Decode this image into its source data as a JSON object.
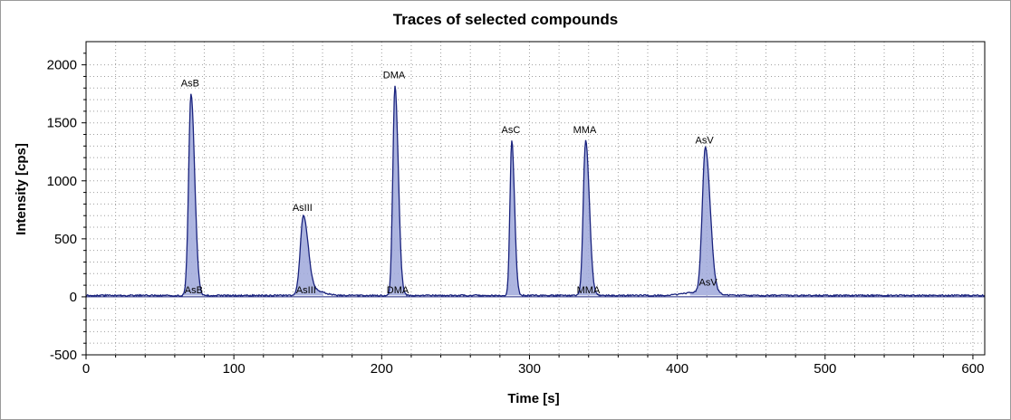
{
  "chart_data": {
    "type": "line",
    "title": "Traces of selected compounds",
    "xlabel": "Time [s]",
    "ylabel": "Intensity [cps]",
    "xlim": [
      0,
      608
    ],
    "ylim": [
      -500,
      2200
    ],
    "x_ticks": [
      0,
      100,
      200,
      300,
      400,
      500,
      600
    ],
    "y_ticks": [
      -500,
      0,
      500,
      1000,
      1500,
      2000
    ],
    "grid": true,
    "line_color": "#1a237e",
    "fill_color": "#9fa8da",
    "baseline": 12,
    "peaks": [
      {
        "name": "AsB",
        "time": 71,
        "height": 1750,
        "width": 2.0
      },
      {
        "name": "AsIII",
        "time": 147,
        "height": 680,
        "width": 2.6
      },
      {
        "name": "DMA",
        "time": 209,
        "height": 1820,
        "width": 1.8
      },
      {
        "name": "AsC",
        "time": 288,
        "height": 1350,
        "width": 1.5
      },
      {
        "name": "MMA",
        "time": 338,
        "height": 1350,
        "width": 2.0
      },
      {
        "name": "AsV",
        "time": 419,
        "height": 1260,
        "width": 2.6
      }
    ],
    "upper_labels": [
      "AsB",
      "AsIII",
      "DMA",
      "AsC",
      "MMA",
      "AsV"
    ],
    "baseline_labels": [
      "AsB",
      "AsIII",
      "DMA",
      "MMA",
      "AsV"
    ]
  }
}
